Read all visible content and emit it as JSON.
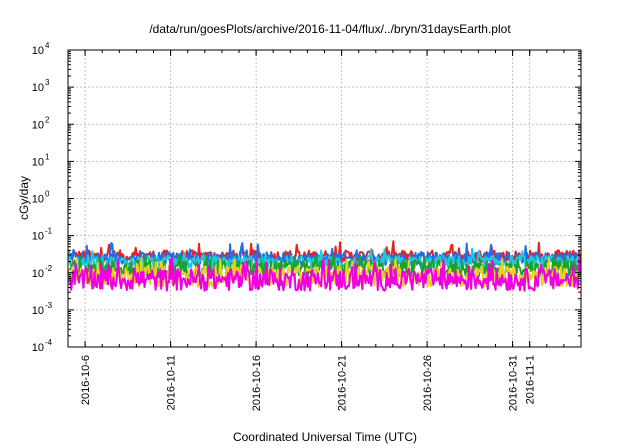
{
  "chart_data": {
    "type": "line",
    "title": "/data/run/goesPlots/archive/2016-11-04/flux/../bryn/31daysEarth.plot",
    "xlabel": "Coordinated Universal Time (UTC)",
    "ylabel": "cGy/day",
    "yscale": "log",
    "ylim": [
      0.0001,
      10000
    ],
    "ytick_labels": [
      {
        "base": "10",
        "exp": "-4",
        "value": 0.0001
      },
      {
        "base": "10",
        "exp": "-3",
        "value": 0.001
      },
      {
        "base": "10",
        "exp": "-2",
        "value": 0.01
      },
      {
        "base": "10",
        "exp": "-1",
        "value": 0.1
      },
      {
        "base": "10",
        "exp": "0",
        "value": 1
      },
      {
        "base": "10",
        "exp": "1",
        "value": 10
      },
      {
        "base": "10",
        "exp": "2",
        "value": 100
      },
      {
        "base": "10",
        "exp": "3",
        "value": 1000
      },
      {
        "base": "10",
        "exp": "4",
        "value": 10000
      }
    ],
    "xlim": [
      "2016-10-05",
      "2016-11-04"
    ],
    "xticks": [
      {
        "label": "2016-10-6",
        "date": "2016-10-06"
      },
      {
        "label": "2016-10-11",
        "date": "2016-10-11"
      },
      {
        "label": "2016-10-16",
        "date": "2016-10-16"
      },
      {
        "label": "2016-10-21",
        "date": "2016-10-21"
      },
      {
        "label": "2016-10-26",
        "date": "2016-10-26"
      },
      {
        "label": "2016-10-31",
        "date": "2016-10-31"
      },
      {
        "label": "2016-11-1",
        "date": "2016-11-01"
      }
    ],
    "grid": true,
    "series": [
      {
        "color": "#e8201e",
        "level": 0.028,
        "spread": 0.16,
        "spikes": 0.055
      },
      {
        "color": "#1f6fe8",
        "level": 0.024,
        "spread": 0.17,
        "spikes": 0.05
      },
      {
        "color": "#20c8d8",
        "level": 0.019,
        "spread": 0.18,
        "spikes": 0.035
      },
      {
        "color": "#1fa02a",
        "level": 0.013,
        "spread": 0.22,
        "spikes": 0.025
      },
      {
        "color": "#e8d020",
        "level": 0.008,
        "spread": 0.28,
        "spikes": 0.02
      },
      {
        "color": "#f000e0",
        "level": 0.0065,
        "spread": 0.3,
        "spikes": 0.018
      }
    ]
  }
}
